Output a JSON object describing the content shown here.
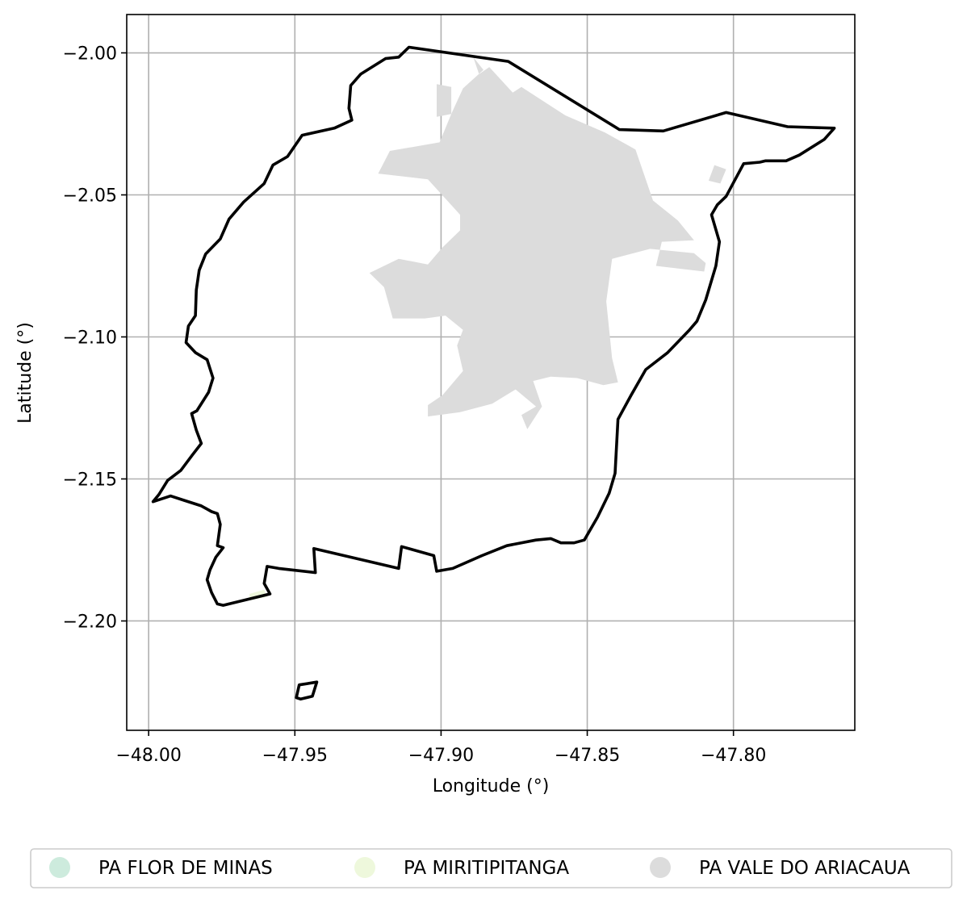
{
  "chart_data": {
    "type": "map",
    "title": "",
    "xlabel": "Longitude (°)",
    "ylabel": "Latitude (°)",
    "xlim": [
      -48.0075,
      -47.7585
    ],
    "ylim": [
      -2.2385,
      -1.9865
    ],
    "grid": true,
    "x_ticks": [
      -48.0,
      -47.95,
      -47.9,
      -47.85,
      -47.8
    ],
    "x_tick_labels": [
      "−48.00",
      "−47.95",
      "−47.90",
      "−47.85",
      "−47.80"
    ],
    "y_ticks": [
      -2.0,
      -2.05,
      -2.1,
      -2.15,
      -2.2
    ],
    "y_tick_labels": [
      "−2.00",
      "−2.05",
      "−2.10",
      "−2.15",
      "−2.20"
    ],
    "legend_position": "bottom",
    "legend": [
      {
        "label": "PA FLOR DE MINAS",
        "color": "#cdebdd"
      },
      {
        "label": "PA MIRITIPITANGA",
        "color": "#eef8dc"
      },
      {
        "label": "PA VALE DO ARIACAUA",
        "color": "#dcdcdc"
      }
    ],
    "boundary_color": "#000000",
    "boundary": [
      [
        -47.911,
        -1.998
      ],
      [
        -47.877,
        -2.003
      ],
      [
        -47.839,
        -2.027
      ],
      [
        -47.824,
        -2.0275
      ],
      [
        -47.8025,
        -2.021
      ],
      [
        -47.7815,
        -2.026
      ],
      [
        -47.7655,
        -2.0265
      ],
      [
        -47.769,
        -2.0305
      ],
      [
        -47.7775,
        -2.036
      ],
      [
        -47.782,
        -2.038
      ],
      [
        -47.789,
        -2.038
      ],
      [
        -47.791,
        -2.0385
      ],
      [
        -47.7965,
        -2.039
      ],
      [
        -47.8025,
        -2.0505
      ],
      [
        -47.8055,
        -2.0535
      ],
      [
        -47.8075,
        -2.057
      ],
      [
        -47.8048,
        -2.0665
      ],
      [
        -47.806,
        -2.075
      ],
      [
        -47.8095,
        -2.087
      ],
      [
        -47.8125,
        -2.0945
      ],
      [
        -47.815,
        -2.0975
      ],
      [
        -47.8225,
        -2.1055
      ],
      [
        -47.83,
        -2.1115
      ],
      [
        -47.835,
        -2.1205
      ],
      [
        -47.8395,
        -2.129
      ],
      [
        -47.8405,
        -2.148
      ],
      [
        -47.8425,
        -2.155
      ],
      [
        -47.8465,
        -2.1635
      ],
      [
        -47.851,
        -2.1715
      ],
      [
        -47.8545,
        -2.1725
      ],
      [
        -47.859,
        -2.1725
      ],
      [
        -47.8625,
        -2.171
      ],
      [
        -47.8675,
        -2.1715
      ],
      [
        -47.8775,
        -2.1735
      ],
      [
        -47.886,
        -2.177
      ],
      [
        -47.896,
        -2.1815
      ],
      [
        -47.9015,
        -2.1825
      ],
      [
        -47.9025,
        -2.177
      ],
      [
        -47.9135,
        -2.1738
      ],
      [
        -47.9145,
        -2.1815
      ],
      [
        -47.9435,
        -2.1745
      ],
      [
        -47.943,
        -2.183
      ],
      [
        -47.9555,
        -2.1815
      ],
      [
        -47.9595,
        -2.1808
      ],
      [
        -47.9605,
        -2.1868
      ],
      [
        -47.9585,
        -2.1905
      ],
      [
        -47.9745,
        -2.1945
      ],
      [
        -47.9765,
        -2.194
      ],
      [
        -47.9785,
        -2.19
      ],
      [
        -47.98,
        -2.1855
      ],
      [
        -47.979,
        -2.182
      ],
      [
        -47.977,
        -2.1775
      ],
      [
        -47.9745,
        -2.1742
      ],
      [
        -47.9765,
        -2.1735
      ],
      [
        -47.9755,
        -2.166
      ],
      [
        -47.9765,
        -2.1622
      ],
      [
        -47.9785,
        -2.1615
      ],
      [
        -47.982,
        -2.1595
      ],
      [
        -47.988,
        -2.1575
      ],
      [
        -47.9925,
        -2.156
      ],
      [
        -47.9985,
        -2.158
      ],
      [
        -47.9965,
        -2.1555
      ],
      [
        -47.9935,
        -2.1505
      ],
      [
        -47.989,
        -2.147
      ],
      [
        -47.985,
        -2.1415
      ],
      [
        -47.982,
        -2.1375
      ],
      [
        -47.9837,
        -2.1328
      ],
      [
        -47.9853,
        -2.127
      ],
      [
        -47.9835,
        -2.126
      ],
      [
        -47.9795,
        -2.1195
      ],
      [
        -47.978,
        -2.1145
      ],
      [
        -47.98,
        -2.108
      ],
      [
        -47.984,
        -2.1055
      ],
      [
        -47.9872,
        -2.102
      ],
      [
        -47.9864,
        -2.0962
      ],
      [
        -47.984,
        -2.0925
      ],
      [
        -47.9837,
        -2.0835
      ],
      [
        -47.9827,
        -2.0765
      ],
      [
        -47.9805,
        -2.0708
      ],
      [
        -47.9755,
        -2.0655
      ],
      [
        -47.9725,
        -2.0585
      ],
      [
        -47.9675,
        -2.0525
      ],
      [
        -47.9605,
        -2.046
      ],
      [
        -47.9575,
        -2.0395
      ],
      [
        -47.9525,
        -2.0365
      ],
      [
        -47.9475,
        -2.029
      ],
      [
        -47.9365,
        -2.0265
      ],
      [
        -47.9305,
        -2.0237
      ],
      [
        -47.9315,
        -2.0195
      ],
      [
        -47.9309,
        -2.0115
      ],
      [
        -47.9275,
        -2.0075
      ],
      [
        -47.919,
        -2.002
      ],
      [
        -47.9145,
        -2.0015
      ],
      [
        -47.911,
        -1.998
      ]
    ],
    "boundary_islet": [
      [
        -47.9485,
        -2.2225
      ],
      [
        -47.9425,
        -2.2215
      ],
      [
        -47.944,
        -2.2265
      ],
      [
        -47.948,
        -2.2275
      ],
      [
        -47.9495,
        -2.227
      ],
      [
        -47.9485,
        -2.2225
      ]
    ],
    "regions": [
      {
        "name": "PA MIRITIPITANGA",
        "color": "#eef8dc",
        "polygons": [
          [
            [
              -47.9655,
              -2.1905
            ],
            [
              -47.9605,
              -2.189
            ],
            [
              -47.9595,
              -2.1915
            ],
            [
              -47.9655,
              -2.1928
            ]
          ]
        ]
      },
      {
        "name": "PA VALE DO ARIACAUA",
        "color": "#dcdcdc",
        "polygons": [
          [
            [
              -47.889,
              -2.0015
            ],
            [
              -47.887,
              -2.0075
            ],
            [
              -47.8835,
              -2.005
            ],
            [
              -47.8755,
              -2.014
            ],
            [
              -47.8725,
              -2.012
            ],
            [
              -47.8575,
              -2.022
            ],
            [
              -47.844,
              -2.028
            ],
            [
              -47.8335,
              -2.034
            ],
            [
              -47.8275,
              -2.052
            ],
            [
              -47.819,
              -2.059
            ],
            [
              -47.8135,
              -2.066
            ],
            [
              -47.8245,
              -2.0665
            ],
            [
              -47.8265,
              -2.075
            ],
            [
              -47.81,
              -2.077
            ],
            [
              -47.8095,
              -2.074
            ],
            [
              -47.8135,
              -2.0705
            ],
            [
              -47.8285,
              -2.069
            ],
            [
              -47.8415,
              -2.0725
            ],
            [
              -47.8435,
              -2.0875
            ],
            [
              -47.8415,
              -2.1075
            ],
            [
              -47.8395,
              -2.116
            ],
            [
              -47.8445,
              -2.117
            ],
            [
              -47.8535,
              -2.1145
            ],
            [
              -47.8625,
              -2.114
            ],
            [
              -47.8685,
              -2.1155
            ],
            [
              -47.8655,
              -2.1245
            ],
            [
              -47.8705,
              -2.1325
            ],
            [
              -47.8725,
              -2.1275
            ],
            [
              -47.8675,
              -2.1245
            ],
            [
              -47.8745,
              -2.1185
            ],
            [
              -47.8825,
              -2.1235
            ],
            [
              -47.8935,
              -2.1265
            ],
            [
              -47.9045,
              -2.128
            ],
            [
              -47.9045,
              -2.124
            ],
            [
              -47.8995,
              -2.1205
            ],
            [
              -47.8925,
              -2.112
            ],
            [
              -47.8945,
              -2.103
            ],
            [
              -47.8925,
              -2.0975
            ],
            [
              -47.8985,
              -2.0925
            ],
            [
              -47.9055,
              -2.0935
            ],
            [
              -47.9165,
              -2.0935
            ],
            [
              -47.9195,
              -2.0825
            ],
            [
              -47.9245,
              -2.0775
            ],
            [
              -47.9145,
              -2.0725
            ],
            [
              -47.9045,
              -2.0745
            ],
            [
              -47.8995,
              -2.0685
            ],
            [
              -47.8935,
              -2.0625
            ],
            [
              -47.8935,
              -2.057
            ],
            [
              -47.9045,
              -2.0445
            ],
            [
              -47.9215,
              -2.0425
            ],
            [
              -47.9175,
              -2.0345
            ],
            [
              -47.9005,
              -2.0315
            ],
            [
              -47.8965,
              -2.0215
            ],
            [
              -47.8925,
              -2.0125
            ],
            [
              -47.8855,
              -2.006
            ],
            [
              -47.889,
              -2.0015
            ]
          ],
          [
            [
              -47.9015,
              -2.011
            ],
            [
              -47.8965,
              -2.012
            ],
            [
              -47.8965,
              -2.0215
            ],
            [
              -47.9015,
              -2.0225
            ],
            [
              -47.9015,
              -2.011
            ]
          ],
          [
            [
              -47.8595,
              -2.034
            ],
            [
              -47.8545,
              -2.028
            ],
            [
              -47.8515,
              -2.0305
            ],
            [
              -47.856,
              -2.037
            ]
          ],
          [
            [
              -47.8065,
              -2.0395
            ],
            [
              -47.8025,
              -2.041
            ],
            [
              -47.8045,
              -2.046
            ],
            [
              -47.8085,
              -2.045
            ]
          ]
        ]
      }
    ]
  }
}
